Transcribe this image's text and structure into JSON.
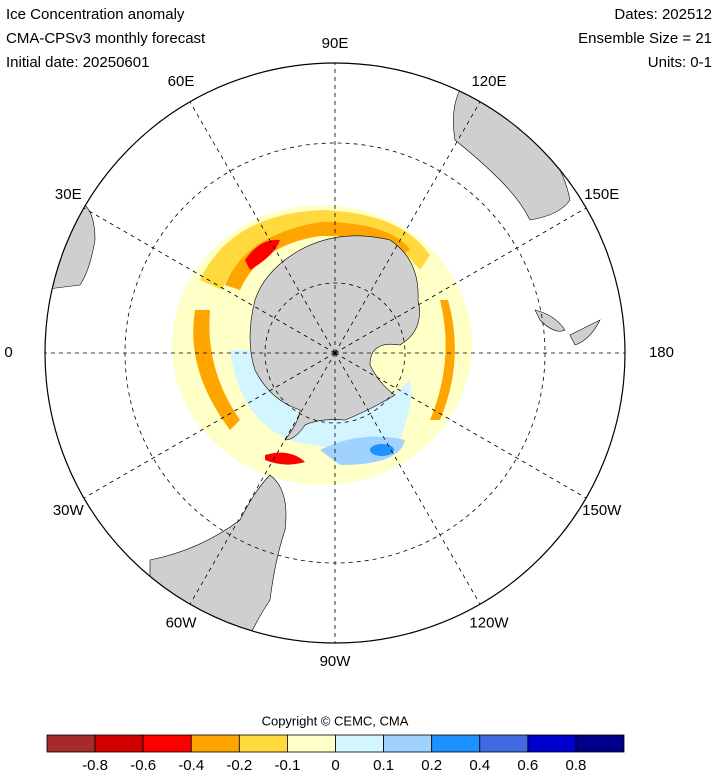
{
  "header": {
    "left": [
      "Ice Concentration anomaly",
      "CMA-CPSv3 monthly forecast",
      "Initial date: 20250601"
    ],
    "right": [
      "Dates: 202512",
      "Ensemble Size = 21",
      "Units: 0-1"
    ]
  },
  "map": {
    "longitude_labels": [
      "90E",
      "120E",
      "150E",
      "180",
      "150W",
      "120W",
      "90W",
      "60W",
      "30W",
      "0",
      "30E",
      "60E"
    ]
  },
  "copyright": "Copyright © CEMC, CMA",
  "colorbar": {
    "colors": [
      "#a52a2a",
      "#d00000",
      "#ff0000",
      "#ffa500",
      "#ffd93d",
      "#ffffc8",
      "#d2f5ff",
      "#a0d2ff",
      "#1e90ff",
      "#4169e1",
      "#0000cd",
      "#00008b"
    ],
    "ticks": [
      -0.8,
      -0.6,
      -0.4,
      -0.2,
      -0.1,
      0,
      0.1,
      0.2,
      0.4,
      0.6,
      0.8
    ]
  }
}
